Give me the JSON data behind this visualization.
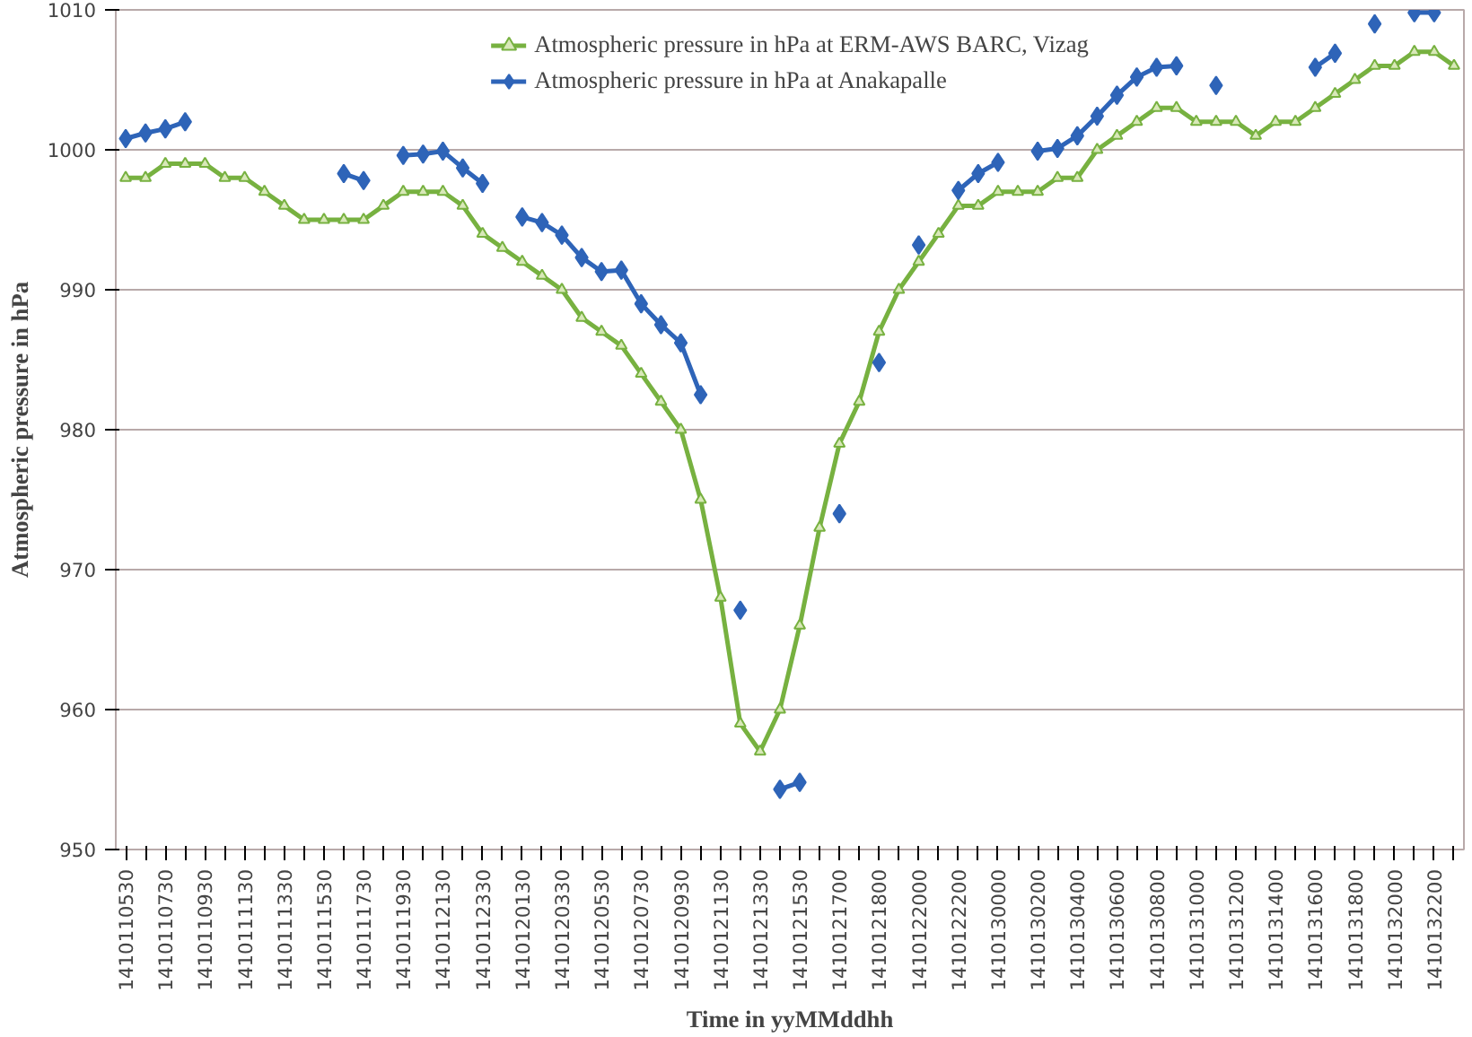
{
  "chart_data": {
    "type": "line",
    "xlabel": "Time in yyMMddhh",
    "ylabel": "Atmospheric pressure in hPa",
    "categories": [
      "1410110530",
      null,
      "1410110730",
      null,
      "1410110930",
      null,
      "1410111130",
      null,
      "1410111330",
      null,
      "1410111530",
      null,
      "1410111730",
      null,
      "1410111930",
      null,
      "1410112130",
      null,
      "1410112330",
      null,
      "1410120130",
      null,
      "1410120330",
      null,
      "1410120530",
      null,
      "1410120730",
      null,
      "1410120930",
      null,
      "1410121130",
      null,
      "1410121330",
      null,
      "1410121530",
      null,
      "1410121700",
      null,
      "1410121800",
      null,
      "1410122000",
      null,
      "1410122200",
      null,
      "1410130000",
      null,
      "1410130200",
      null,
      "1410130400",
      null,
      "1410130600",
      null,
      "1410130800",
      null,
      "1410131000",
      null,
      "1410131200",
      null,
      "1410131400",
      null,
      "1410131600",
      null,
      "1410131800",
      null,
      "1410132000",
      null,
      "1410132200",
      null
    ],
    "series": [
      {
        "name": "Atmospheric pressure in hPa at ERM-AWS BARC, Vizag",
        "color": "#77b140",
        "marker": "triangle",
        "values": [
          998,
          998,
          999,
          999,
          999,
          998,
          998,
          997,
          996,
          995,
          995,
          995,
          995,
          996,
          997,
          997,
          997,
          996,
          994,
          993,
          992,
          991,
          990,
          988,
          987,
          986,
          984,
          982,
          980,
          975,
          968,
          959,
          957,
          960,
          966,
          973,
          979,
          982,
          987,
          990,
          992,
          994,
          996,
          996,
          997,
          997,
          997,
          998,
          998,
          1000,
          1001,
          1002,
          1003,
          1003,
          1002,
          1002,
          1002,
          1001,
          1002,
          1002,
          1003,
          1004,
          1005,
          1006,
          1006,
          1007,
          1007,
          1006
        ]
      },
      {
        "name": "Atmospheric pressure in hPa at Anakapalle",
        "color": "#2e64b8",
        "marker": "diamond",
        "values": [
          1000.8,
          1001.2,
          1001.5,
          1002.0,
          null,
          null,
          null,
          null,
          null,
          null,
          null,
          998.3,
          997.8,
          null,
          999.6,
          999.7,
          999.9,
          998.7,
          997.6,
          null,
          995.2,
          994.8,
          993.9,
          992.3,
          991.3,
          991.4,
          989.0,
          987.5,
          986.2,
          982.5,
          null,
          967.1,
          null,
          954.3,
          954.8,
          null,
          974.0,
          null,
          984.8,
          null,
          993.2,
          null,
          997.1,
          998.3,
          999.1,
          null,
          999.9,
          1000.1,
          1001.0,
          1002.4,
          1003.9,
          1005.2,
          1005.9,
          1006.0,
          null,
          1004.6,
          null,
          null,
          null,
          null,
          1005.9,
          1006.9,
          null,
          1009.0,
          null,
          1009.8,
          1009.8,
          null
        ]
      }
    ],
    "ylim": [
      950,
      1010
    ],
    "yticks": [
      950,
      960,
      970,
      980,
      990,
      1000,
      1010
    ],
    "grid": "y",
    "legend": "top"
  }
}
